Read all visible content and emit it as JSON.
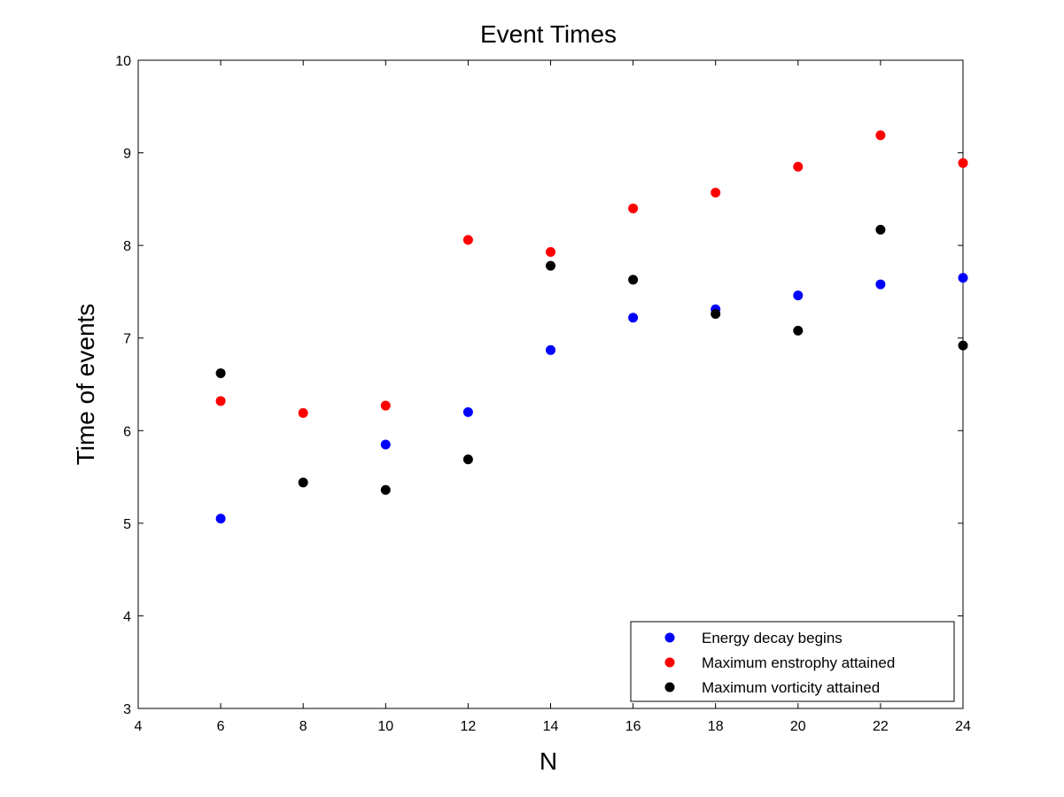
{
  "chart_data": {
    "type": "scatter",
    "title": "Event Times",
    "xlabel": "N",
    "ylabel": "Time of events",
    "xlim": [
      4,
      24
    ],
    "ylim": [
      3,
      10
    ],
    "xticks": [
      "4",
      "6",
      "8",
      "10",
      "12",
      "14",
      "16",
      "18",
      "20",
      "22",
      "24"
    ],
    "yticks": [
      "3",
      "4",
      "5",
      "6",
      "7",
      "8",
      "9",
      "10"
    ],
    "grid": false,
    "legend_position": "bottom-right",
    "series": [
      {
        "name": "Energy decay begins",
        "color": "#0000ff",
        "x": [
          6,
          10,
          12,
          14,
          16,
          18,
          20,
          22,
          24
        ],
        "y": [
          5.05,
          5.85,
          6.2,
          6.87,
          7.22,
          7.31,
          7.46,
          7.58,
          7.65
        ]
      },
      {
        "name": "Maximum enstrophy attained",
        "color": "#ff0000",
        "x": [
          6,
          8,
          10,
          12,
          14,
          16,
          18,
          20,
          22,
          24
        ],
        "y": [
          6.32,
          6.19,
          6.27,
          8.06,
          7.93,
          8.4,
          8.57,
          8.85,
          9.19,
          8.89
        ]
      },
      {
        "name": "Maximum vorticity attained",
        "color": "#000000",
        "x": [
          6,
          8,
          10,
          12,
          14,
          16,
          18,
          20,
          22,
          24
        ],
        "y": [
          6.62,
          5.44,
          5.36,
          5.69,
          7.78,
          7.63,
          7.26,
          7.08,
          8.17,
          6.92
        ]
      }
    ]
  }
}
